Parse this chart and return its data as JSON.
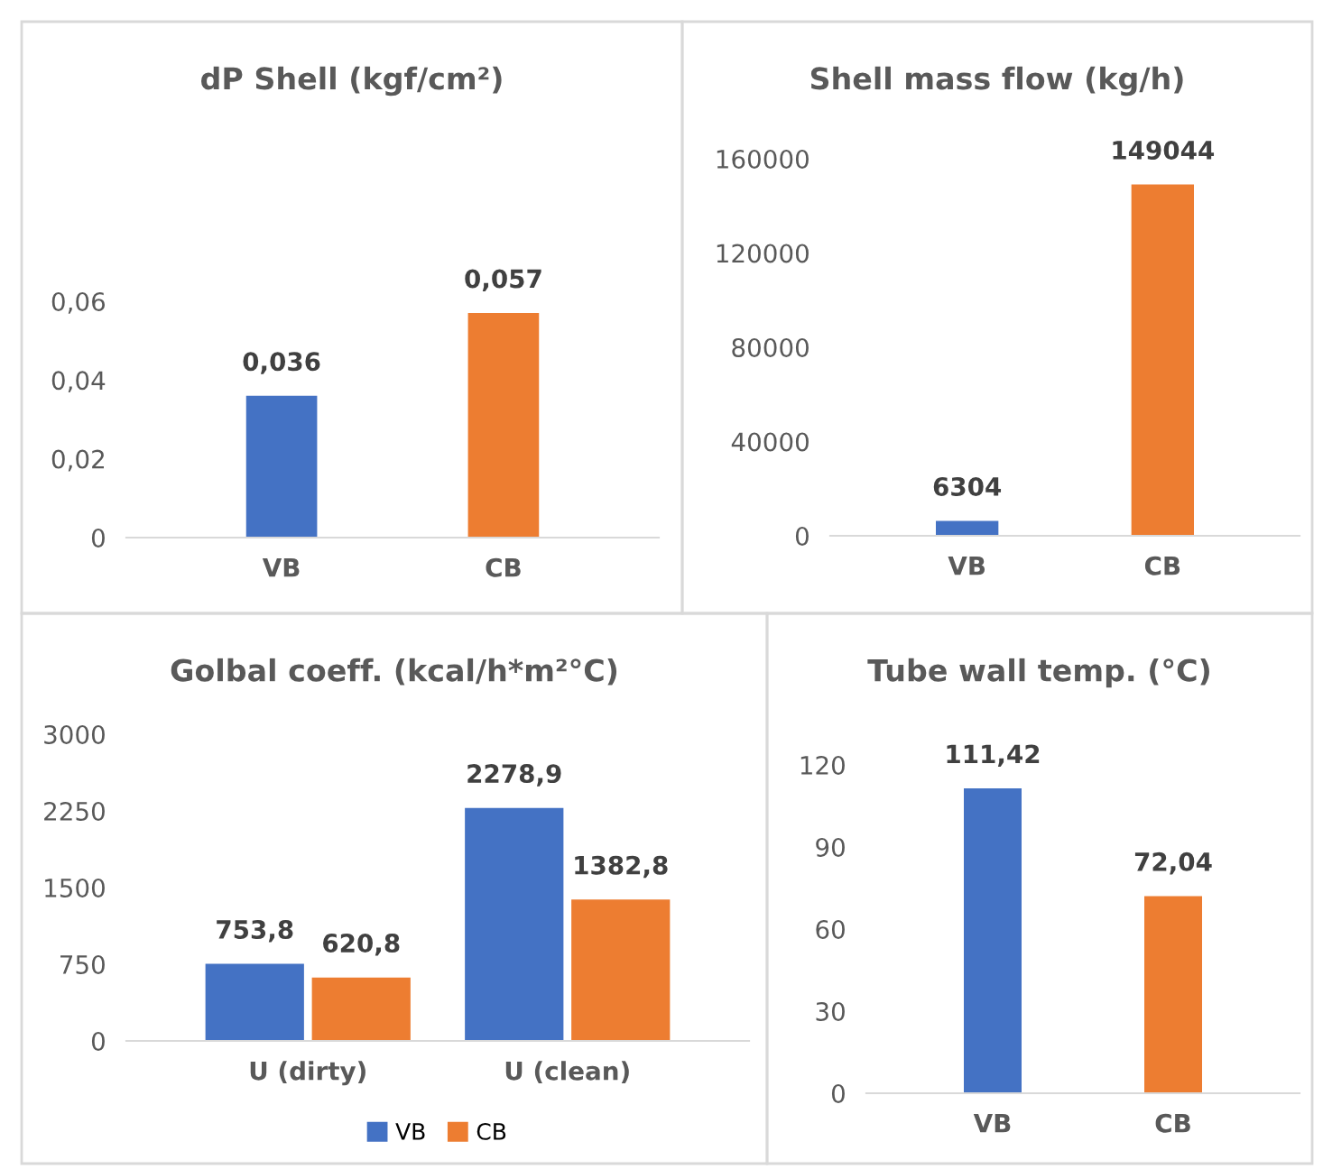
{
  "chart_data": [
    {
      "type": "bar",
      "title": "dP Shell (kgf/cm²)",
      "categories": [
        "VB",
        "CB"
      ],
      "values": [
        0.036,
        0.057
      ],
      "colors": [
        "#4472c4",
        "#ed7d31"
      ],
      "value_labels": [
        "0,036",
        "0,057"
      ],
      "ylim": [
        0,
        0.06
      ],
      "yticks": [
        0,
        {
          "value": 0.02,
          "label": "0,02"
        },
        {
          "value": 0.04,
          "label": "0,04"
        },
        {
          "value": 0.06,
          "label": "0,06"
        }
      ],
      "grid": false,
      "legend": false
    },
    {
      "type": "bar",
      "title": "Shell mass flow (kg/h)",
      "categories": [
        "VB",
        "CB"
      ],
      "values": [
        6304,
        149044
      ],
      "colors": [
        "#4472c4",
        "#ed7d31"
      ],
      "data_labels": true,
      "ylim": [
        0,
        160000
      ],
      "yticks": [
        0,
        40000,
        80000,
        120000,
        160000
      ],
      "grid": false,
      "legend": false
    },
    {
      "type": "bar",
      "title": "Golbal coeff. (kcal/h*m²°C)",
      "categories": [
        "U (dirty)",
        "U (clean)"
      ],
      "series": [
        {
          "name": "VB",
          "color": "#4472c4",
          "values": [
            753.8,
            2278.9
          ],
          "value_labels": [
            "753,8",
            "2278,9"
          ]
        },
        {
          "name": "CB",
          "color": "#ed7d31",
          "values": [
            620.8,
            1382.8
          ],
          "value_labels": [
            "620,8",
            "1382,8"
          ]
        }
      ],
      "ylim": [
        0,
        3000
      ],
      "yticks": [
        0,
        750,
        1500,
        2250,
        3000
      ],
      "grid": false,
      "legend": "bottom"
    },
    {
      "type": "bar",
      "title": "Tube wall temp. (°C)",
      "categories": [
        "VB",
        "CB"
      ],
      "values": [
        111.42,
        72.04
      ],
      "colors": [
        "#4472c4",
        "#ed7d31"
      ],
      "value_labels": [
        "111,42",
        "72,04"
      ],
      "ylim": [
        0,
        120
      ],
      "yticks": [
        0,
        30,
        60,
        90,
        120
      ],
      "grid": false,
      "legend": false
    }
  ]
}
